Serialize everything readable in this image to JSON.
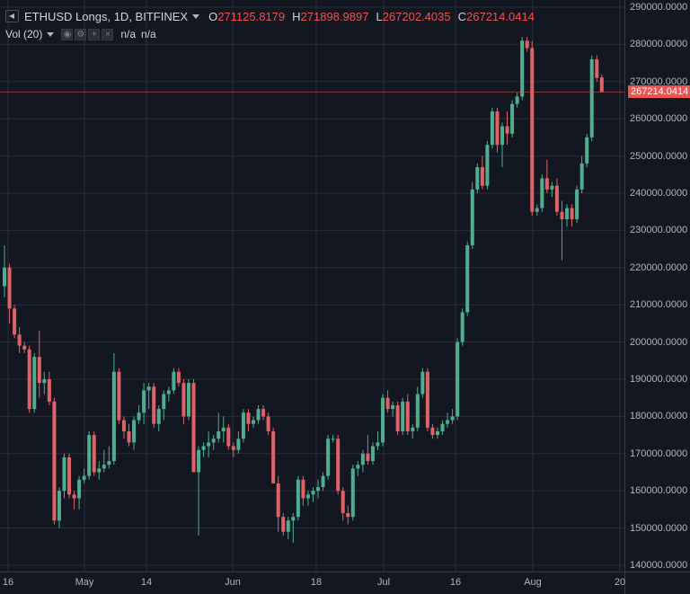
{
  "legend": {
    "symbol": "ETHUSD Longs, 1D, BITFINEX",
    "o_label": "O",
    "o_value": "271125.8179",
    "h_label": "H",
    "h_value": "271898.9897",
    "l_label": "L",
    "l_value": "267202.4035",
    "c_label": "C",
    "c_value": "267214.0414",
    "volume_label": "Vol (20)",
    "volume_values": [
      "n/a",
      "n/a"
    ]
  },
  "colors": {
    "background": "#131722",
    "grid": "#2a2e39",
    "up": "#26a69a",
    "up_fill": "#4fae8f",
    "down": "#ef5350",
    "down_fill": "#e06267",
    "axis_text": "#b2b5be",
    "price_line": "#ef5350"
  },
  "chart_data": {
    "type": "candlestick",
    "x_tick_labels": [
      "16",
      "May",
      "14",
      "Jun",
      "18",
      "Jul",
      "16",
      "Aug",
      "20"
    ],
    "y_tick_labels": [
      "290000.0000",
      "280000.0000",
      "270000.0000",
      "260000.0000",
      "250000.0000",
      "240000.0000",
      "230000.0000",
      "220000.0000",
      "210000.0000",
      "200000.0000",
      "190000.0000",
      "180000.0000",
      "170000.0000",
      "160000.0000",
      "150000.0000",
      "140000.0000"
    ],
    "ylim": [
      140000,
      290000
    ],
    "last_price_label": "267214.0414",
    "last_price": 267214.0414,
    "grid": true,
    "candles": [
      {
        "o": 215000,
        "h": 226000,
        "l": 212000,
        "c": 220000
      },
      {
        "o": 220000,
        "h": 221000,
        "l": 205000,
        "c": 209000
      },
      {
        "o": 209000,
        "h": 210000,
        "l": 201000,
        "c": 202000
      },
      {
        "o": 202000,
        "h": 204000,
        "l": 197000,
        "c": 199000
      },
      {
        "o": 199000,
        "h": 200000,
        "l": 197000,
        "c": 198000
      },
      {
        "o": 198000,
        "h": 199000,
        "l": 181000,
        "c": 182000
      },
      {
        "o": 182000,
        "h": 197000,
        "l": 181000,
        "c": 196000
      },
      {
        "o": 196000,
        "h": 203000,
        "l": 185000,
        "c": 189000
      },
      {
        "o": 189000,
        "h": 192000,
        "l": 186000,
        "c": 190000
      },
      {
        "o": 190000,
        "h": 192000,
        "l": 183000,
        "c": 184000
      },
      {
        "o": 184000,
        "h": 185000,
        "l": 151000,
        "c": 152000
      },
      {
        "o": 152000,
        "h": 161000,
        "l": 150000,
        "c": 160000
      },
      {
        "o": 160000,
        "h": 170000,
        "l": 158000,
        "c": 169000
      },
      {
        "o": 169000,
        "h": 170000,
        "l": 158000,
        "c": 159000
      },
      {
        "o": 159000,
        "h": 160000,
        "l": 155000,
        "c": 158000
      },
      {
        "o": 158000,
        "h": 164000,
        "l": 155000,
        "c": 163000
      },
      {
        "o": 163000,
        "h": 166000,
        "l": 162000,
        "c": 164000
      },
      {
        "o": 164000,
        "h": 176000,
        "l": 163000,
        "c": 175000
      },
      {
        "o": 175000,
        "h": 176000,
        "l": 164000,
        "c": 165000
      },
      {
        "o": 165000,
        "h": 168000,
        "l": 163000,
        "c": 166000
      },
      {
        "o": 166000,
        "h": 171000,
        "l": 165000,
        "c": 167000
      },
      {
        "o": 167000,
        "h": 172000,
        "l": 166000,
        "c": 168000
      },
      {
        "o": 168000,
        "h": 197000,
        "l": 167000,
        "c": 192000
      },
      {
        "o": 192000,
        "h": 193000,
        "l": 178000,
        "c": 179000
      },
      {
        "o": 179000,
        "h": 180000,
        "l": 174000,
        "c": 176000
      },
      {
        "o": 176000,
        "h": 178000,
        "l": 172000,
        "c": 173000
      },
      {
        "o": 173000,
        "h": 180000,
        "l": 171000,
        "c": 179000
      },
      {
        "o": 179000,
        "h": 183000,
        "l": 178000,
        "c": 181000
      },
      {
        "o": 181000,
        "h": 189000,
        "l": 178000,
        "c": 187000
      },
      {
        "o": 187000,
        "h": 189000,
        "l": 182000,
        "c": 188000
      },
      {
        "o": 188000,
        "h": 189000,
        "l": 177000,
        "c": 178000
      },
      {
        "o": 178000,
        "h": 183000,
        "l": 176000,
        "c": 182000
      },
      {
        "o": 182000,
        "h": 187000,
        "l": 179000,
        "c": 186000
      },
      {
        "o": 186000,
        "h": 188000,
        "l": 184000,
        "c": 187000
      },
      {
        "o": 187000,
        "h": 193000,
        "l": 186000,
        "c": 192000
      },
      {
        "o": 192000,
        "h": 193000,
        "l": 188000,
        "c": 189000
      },
      {
        "o": 189000,
        "h": 190000,
        "l": 178000,
        "c": 180000
      },
      {
        "o": 180000,
        "h": 190000,
        "l": 179000,
        "c": 189000
      },
      {
        "o": 189000,
        "h": 190000,
        "l": 165000,
        "c": 165000
      },
      {
        "o": 165000,
        "h": 172000,
        "l": 148000,
        "c": 171000
      },
      {
        "o": 171000,
        "h": 173000,
        "l": 169000,
        "c": 172000
      },
      {
        "o": 172000,
        "h": 176000,
        "l": 169000,
        "c": 173000
      },
      {
        "o": 173000,
        "h": 175000,
        "l": 171000,
        "c": 174000
      },
      {
        "o": 174000,
        "h": 181000,
        "l": 173000,
        "c": 176000
      },
      {
        "o": 176000,
        "h": 180000,
        "l": 173000,
        "c": 177000
      },
      {
        "o": 177000,
        "h": 178000,
        "l": 171000,
        "c": 172000
      },
      {
        "o": 172000,
        "h": 173000,
        "l": 169000,
        "c": 171000
      },
      {
        "o": 171000,
        "h": 176000,
        "l": 170000,
        "c": 174000
      },
      {
        "o": 174000,
        "h": 182000,
        "l": 173000,
        "c": 181000
      },
      {
        "o": 181000,
        "h": 182000,
        "l": 176000,
        "c": 178000
      },
      {
        "o": 178000,
        "h": 180000,
        "l": 177000,
        "c": 179000
      },
      {
        "o": 179000,
        "h": 183000,
        "l": 178000,
        "c": 182000
      },
      {
        "o": 182000,
        "h": 183000,
        "l": 179000,
        "c": 180000
      },
      {
        "o": 180000,
        "h": 181000,
        "l": 175000,
        "c": 176000
      },
      {
        "o": 176000,
        "h": 177000,
        "l": 162000,
        "c": 162000
      },
      {
        "o": 162000,
        "h": 164000,
        "l": 149000,
        "c": 153000
      },
      {
        "o": 153000,
        "h": 154000,
        "l": 148000,
        "c": 149000
      },
      {
        "o": 149000,
        "h": 153000,
        "l": 147000,
        "c": 152000
      },
      {
        "o": 152000,
        "h": 154000,
        "l": 146000,
        "c": 153000
      },
      {
        "o": 153000,
        "h": 164000,
        "l": 152000,
        "c": 163000
      },
      {
        "o": 163000,
        "h": 164000,
        "l": 156000,
        "c": 158000
      },
      {
        "o": 158000,
        "h": 160000,
        "l": 156000,
        "c": 159000
      },
      {
        "o": 159000,
        "h": 161000,
        "l": 157000,
        "c": 160000
      },
      {
        "o": 160000,
        "h": 163000,
        "l": 158000,
        "c": 161000
      },
      {
        "o": 161000,
        "h": 165000,
        "l": 160000,
        "c": 164000
      },
      {
        "o": 164000,
        "h": 175000,
        "l": 163000,
        "c": 174000
      },
      {
        "o": 174000,
        "h": 175000,
        "l": 173000,
        "c": 174000
      },
      {
        "o": 174000,
        "h": 175000,
        "l": 159000,
        "c": 160000
      },
      {
        "o": 160000,
        "h": 161000,
        "l": 152000,
        "c": 154000
      },
      {
        "o": 154000,
        "h": 156000,
        "l": 151000,
        "c": 153000
      },
      {
        "o": 153000,
        "h": 167000,
        "l": 152000,
        "c": 166000
      },
      {
        "o": 166000,
        "h": 168000,
        "l": 164000,
        "c": 167000
      },
      {
        "o": 167000,
        "h": 171000,
        "l": 165000,
        "c": 170000
      },
      {
        "o": 170000,
        "h": 175000,
        "l": 167000,
        "c": 168000
      },
      {
        "o": 168000,
        "h": 173000,
        "l": 167000,
        "c": 172000
      },
      {
        "o": 172000,
        "h": 176000,
        "l": 171000,
        "c": 173000
      },
      {
        "o": 173000,
        "h": 186000,
        "l": 172000,
        "c": 185000
      },
      {
        "o": 185000,
        "h": 187000,
        "l": 181000,
        "c": 182000
      },
      {
        "o": 182000,
        "h": 184000,
        "l": 180000,
        "c": 183000
      },
      {
        "o": 183000,
        "h": 184000,
        "l": 175000,
        "c": 176000
      },
      {
        "o": 176000,
        "h": 185000,
        "l": 175000,
        "c": 184000
      },
      {
        "o": 184000,
        "h": 186000,
        "l": 175000,
        "c": 176000
      },
      {
        "o": 176000,
        "h": 178000,
        "l": 174000,
        "c": 177000
      },
      {
        "o": 177000,
        "h": 188000,
        "l": 176000,
        "c": 186000
      },
      {
        "o": 186000,
        "h": 193000,
        "l": 185000,
        "c": 192000
      },
      {
        "o": 192000,
        "h": 193000,
        "l": 176000,
        "c": 177000
      },
      {
        "o": 177000,
        "h": 178000,
        "l": 174000,
        "c": 175000
      },
      {
        "o": 175000,
        "h": 177000,
        "l": 174000,
        "c": 176000
      },
      {
        "o": 176000,
        "h": 179000,
        "l": 175000,
        "c": 178000
      },
      {
        "o": 178000,
        "h": 181000,
        "l": 177000,
        "c": 179000
      },
      {
        "o": 179000,
        "h": 182000,
        "l": 178000,
        "c": 180000
      },
      {
        "o": 180000,
        "h": 201000,
        "l": 179000,
        "c": 200000
      },
      {
        "o": 200000,
        "h": 209000,
        "l": 199000,
        "c": 208000
      },
      {
        "o": 208000,
        "h": 227000,
        "l": 207000,
        "c": 226000
      },
      {
        "o": 226000,
        "h": 243000,
        "l": 225000,
        "c": 241000
      },
      {
        "o": 241000,
        "h": 248000,
        "l": 240000,
        "c": 247000
      },
      {
        "o": 247000,
        "h": 250000,
        "l": 241000,
        "c": 242000
      },
      {
        "o": 242000,
        "h": 254000,
        "l": 241000,
        "c": 253000
      },
      {
        "o": 253000,
        "h": 263000,
        "l": 252000,
        "c": 262000
      },
      {
        "o": 262000,
        "h": 263000,
        "l": 251000,
        "c": 253000
      },
      {
        "o": 253000,
        "h": 259000,
        "l": 247000,
        "c": 258000
      },
      {
        "o": 258000,
        "h": 262000,
        "l": 253000,
        "c": 256000
      },
      {
        "o": 256000,
        "h": 265000,
        "l": 255000,
        "c": 264000
      },
      {
        "o": 264000,
        "h": 267000,
        "l": 263000,
        "c": 266000
      },
      {
        "o": 266000,
        "h": 282000,
        "l": 265000,
        "c": 281000
      },
      {
        "o": 281000,
        "h": 282000,
        "l": 278000,
        "c": 279000
      },
      {
        "o": 279000,
        "h": 281000,
        "l": 234000,
        "c": 235000
      },
      {
        "o": 235000,
        "h": 237000,
        "l": 234000,
        "c": 236000
      },
      {
        "o": 236000,
        "h": 245000,
        "l": 235000,
        "c": 244000
      },
      {
        "o": 244000,
        "h": 249000,
        "l": 240000,
        "c": 241000
      },
      {
        "o": 241000,
        "h": 243000,
        "l": 239000,
        "c": 242000
      },
      {
        "o": 242000,
        "h": 244000,
        "l": 234000,
        "c": 235000
      },
      {
        "o": 235000,
        "h": 238000,
        "l": 222000,
        "c": 233000
      },
      {
        "o": 233000,
        "h": 237000,
        "l": 231000,
        "c": 236000
      },
      {
        "o": 236000,
        "h": 237000,
        "l": 231000,
        "c": 233000
      },
      {
        "o": 233000,
        "h": 242000,
        "l": 232000,
        "c": 241000
      },
      {
        "o": 241000,
        "h": 250000,
        "l": 240000,
        "c": 248000
      },
      {
        "o": 248000,
        "h": 256000,
        "l": 247000,
        "c": 255000
      },
      {
        "o": 255000,
        "h": 277000,
        "l": 254000,
        "c": 276000
      },
      {
        "o": 276000,
        "h": 277000,
        "l": 270000,
        "c": 271000
      },
      {
        "o": 271125.8179,
        "h": 271898.9897,
        "l": 267202.4035,
        "c": 267214.0414
      }
    ]
  }
}
